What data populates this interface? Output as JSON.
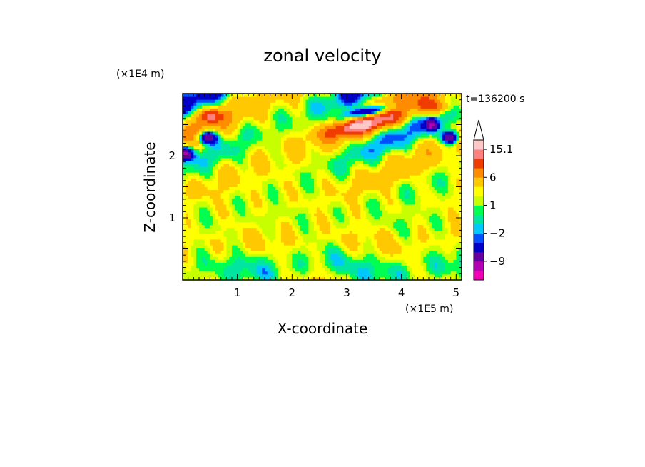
{
  "chart_data": {
    "type": "heatmap",
    "title": "zonal velocity",
    "xlabel": "X-coordinate",
    "ylabel": "Z-coordinate",
    "x_unit": "(×1E5 m)",
    "y_unit": "(×1E4 m)",
    "time_label": "t=136200 s",
    "xlim": [
      0,
      5.1
    ],
    "ylim": [
      0,
      3.0
    ],
    "x_ticks": [
      1,
      2,
      3,
      4,
      5
    ],
    "y_ticks": [
      1,
      2
    ],
    "colorbar": {
      "levels": [
        -15,
        -12,
        -9,
        -6,
        -3,
        -2,
        -1,
        0,
        1,
        2,
        3,
        6,
        9,
        12,
        15.1
      ],
      "labels": [
        {
          "value": 15.1,
          "text": "15.1"
        },
        {
          "value": 6,
          "text": "6"
        },
        {
          "value": 1,
          "text": "1"
        },
        {
          "value": -2,
          "text": "−2"
        },
        {
          "value": -9,
          "text": "−9"
        }
      ],
      "colors": [
        "#f000b4",
        "#b400b4",
        "#6400a0",
        "#0000c8",
        "#0050ff",
        "#00c8ff",
        "#00e6a0",
        "#00ff50",
        "#c8ff00",
        "#ffff00",
        "#ffc800",
        "#ff8c00",
        "#f03c00",
        "#ff8080",
        "#ffc8c8"
      ]
    }
  }
}
